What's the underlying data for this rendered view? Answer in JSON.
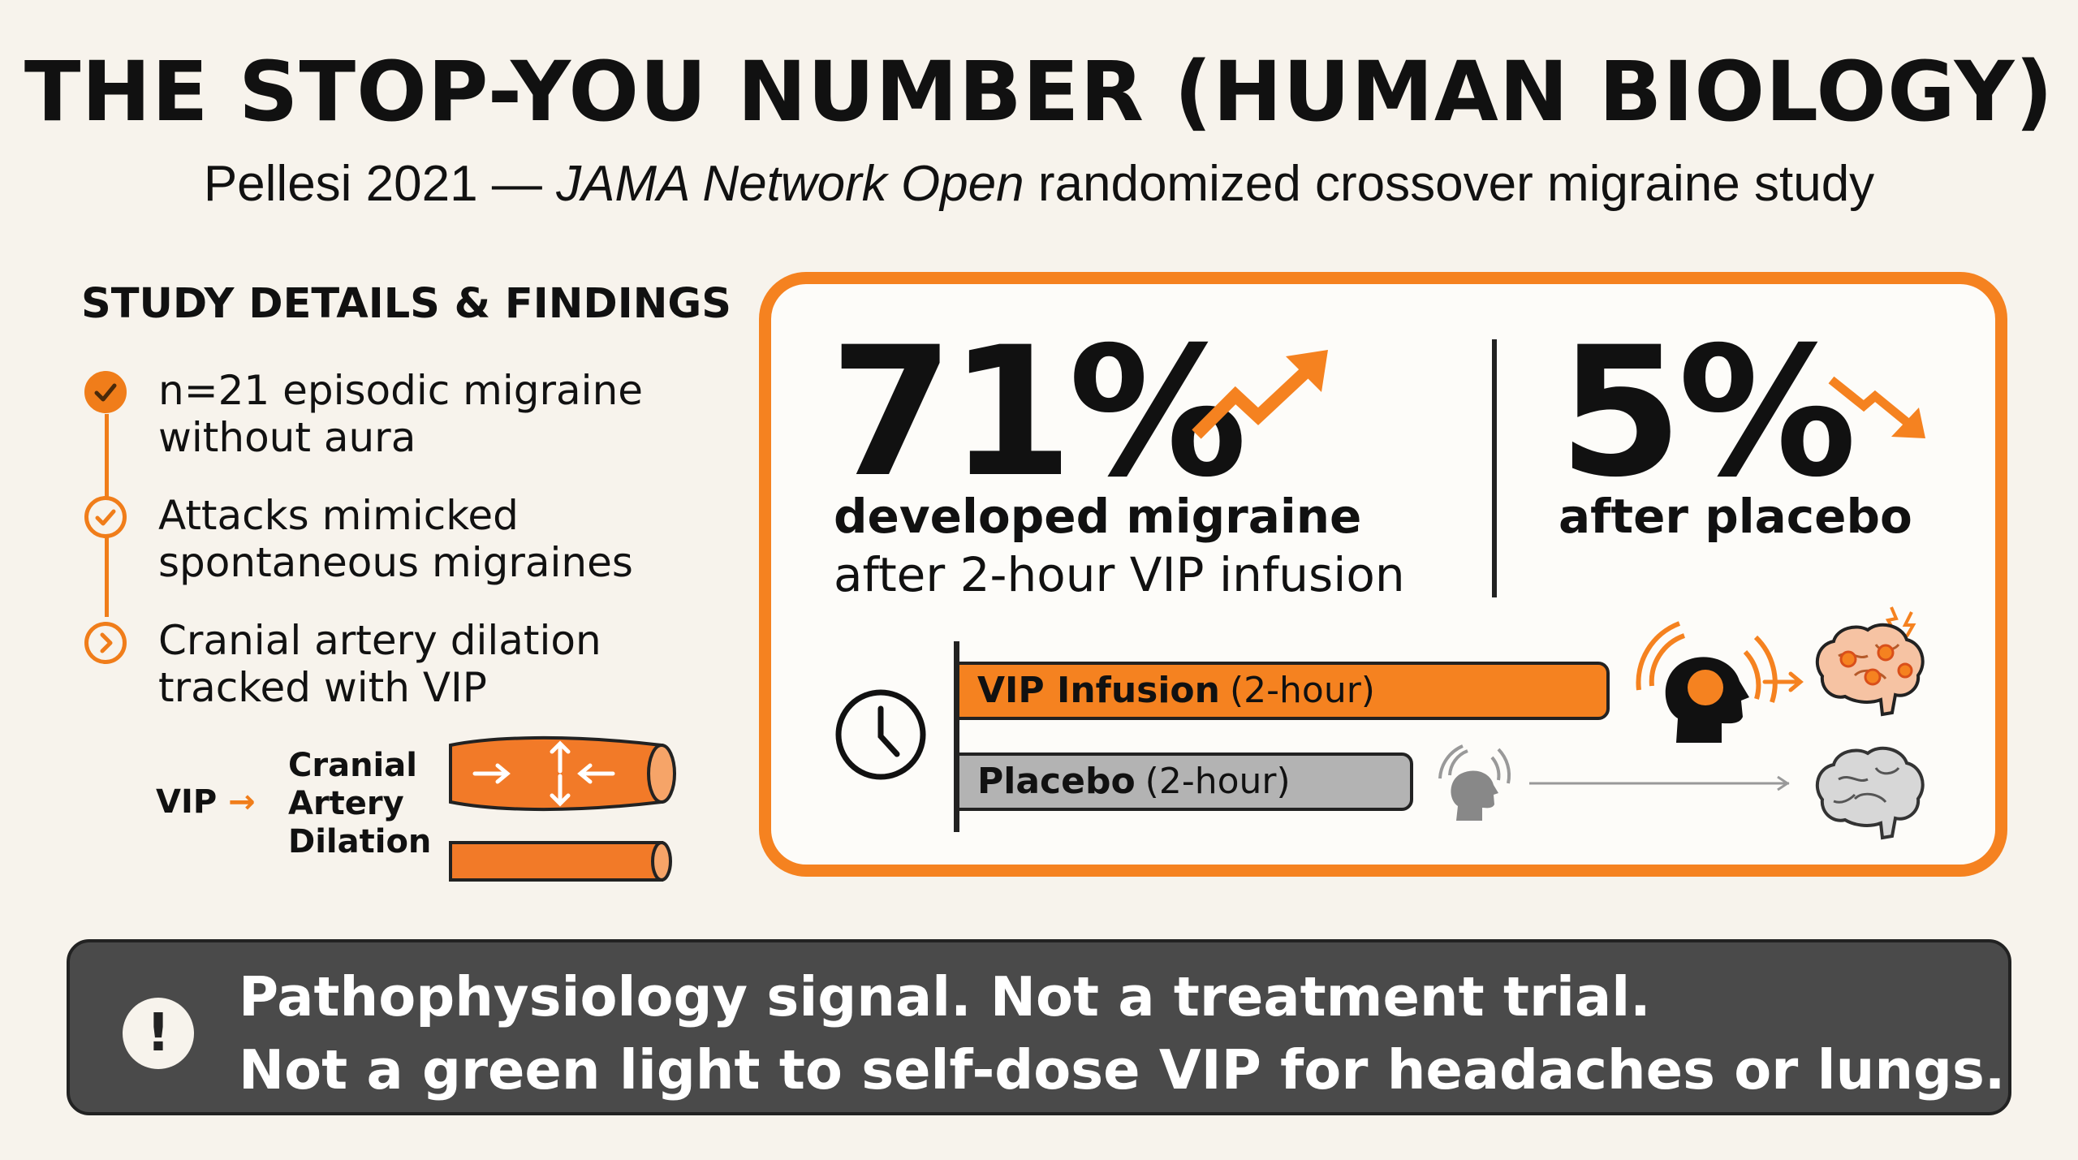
{
  "header": {
    "title": "THE STOP-YOU NUMBER (HUMAN BIOLOGY)",
    "subtitle_prefix": "Pellesi 2021 — ",
    "subtitle_journal": "JAMA Network Open",
    "subtitle_suffix": " randomized crossover migraine study"
  },
  "study": {
    "heading": "STUDY DETAILS & FINDINGS",
    "items": [
      {
        "text": "n=21 episodic migraine\nwithout aura",
        "icon": "check-filled-icon"
      },
      {
        "text": "Attacks mimicked\nspontaneous migraines",
        "icon": "check-outline-icon"
      },
      {
        "text": "Cranial artery dilation\ntracked with VIP",
        "icon": "chevron-right-icon"
      }
    ],
    "diagram": {
      "vip_label": "VIP",
      "arrow": "→",
      "effect_label": "Cranial\nArtery\nDilation"
    }
  },
  "results": {
    "vip": {
      "percent": "71%",
      "desc_line1": "developed migraine",
      "desc_line2": "after 2-hour VIP infusion",
      "trend_icon": "trend-up-arrow-icon"
    },
    "placebo": {
      "percent": "5%",
      "desc": "after placebo",
      "trend_icon": "trend-down-arrow-icon"
    },
    "bars": [
      {
        "label_bold": "VIP Infusion",
        "label_plain": "(2-hour)",
        "color": "#f58220"
      },
      {
        "label_bold": "Placebo",
        "label_plain": "(2-hour)",
        "color": "#b3b3b3"
      }
    ],
    "clock_icon": "clock-icon"
  },
  "warning": {
    "icon": "!",
    "line1": "Pathophysiology signal. Not a treatment trial.",
    "line2": "Not a green light to self-dose VIP for headaches or lungs."
  },
  "colors": {
    "accent": "#f58220",
    "background": "#f7f3ec",
    "dark_panel": "#4a4a4a"
  }
}
